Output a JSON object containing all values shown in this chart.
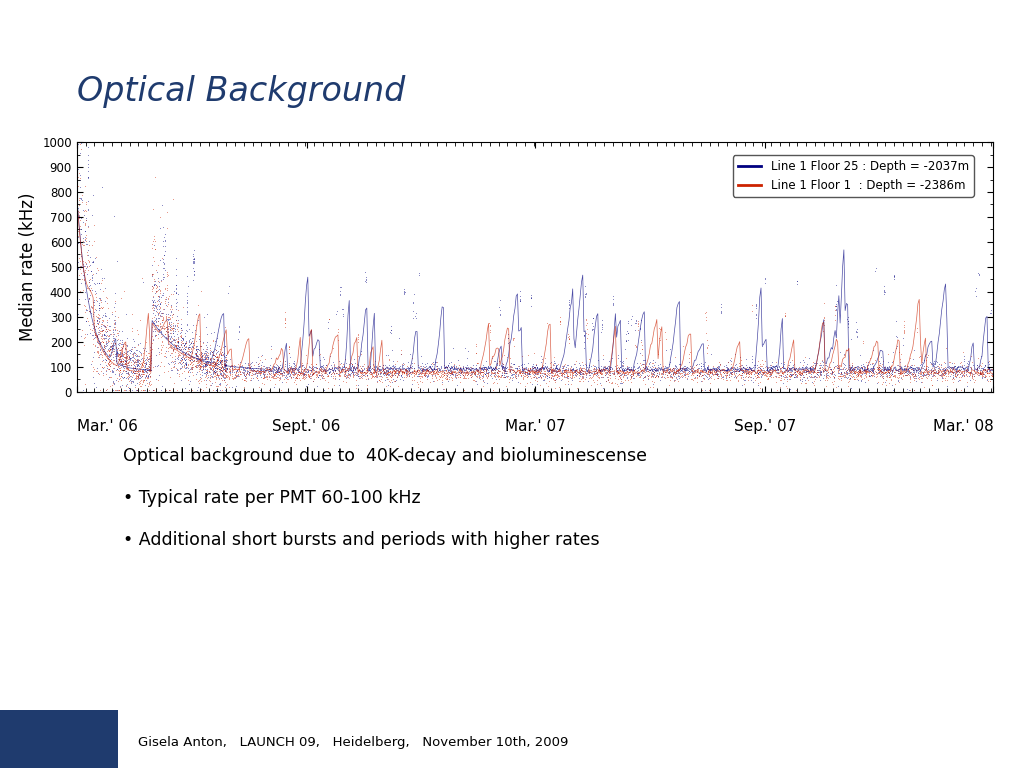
{
  "title": "Optical Background",
  "title_color": "#1F3B6E",
  "title_fontsize": 24,
  "ylabel": "Median rate (kHz)",
  "ylabel_fontsize": 12,
  "ylim": [
    0,
    1000
  ],
  "yticks": [
    0,
    100,
    200,
    300,
    400,
    500,
    600,
    700,
    800,
    900,
    1000
  ],
  "xtick_labels": [
    "Mar.' 06",
    "Sept.' 06",
    "Mar.' 07",
    "Sep.' 07",
    "Mar.' 08"
  ],
  "xtick_positions": [
    0,
    183,
    365,
    548,
    730
  ],
  "legend_line1": "Line 1 Floor 25 : Depth = -2037m",
  "legend_line2": "Line 1 Floor 1  : Depth = -2386m",
  "color_blue": "#000080",
  "color_red": "#CC2200",
  "text_body": "Optical background due to  40K-decay and bioluminescense",
  "bullet1": "Typical rate per PMT 60-100 kHz",
  "bullet2": "Additional short bursts and periods with higher rates",
  "footer": "Gisela Anton,   LAUNCH 09,   Heidelberg,   November 10th, 2009",
  "background_color": "#FFFFFF",
  "plot_bg": "#FFFFFF",
  "total_days": 730,
  "seed": 42,
  "footer_bg": "#C8C8C8",
  "footer_block": "#1F3B6E"
}
